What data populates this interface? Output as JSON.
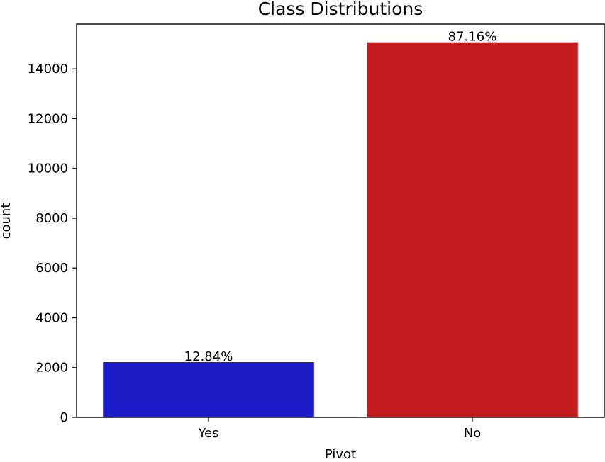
{
  "chart_data": {
    "type": "bar",
    "title": "Class Distributions",
    "xlabel": "Pivot",
    "ylabel": "count",
    "categories": [
      "Yes",
      "No"
    ],
    "values": [
      2220,
      15070
    ],
    "bar_labels": [
      "12.84%",
      "87.16%"
    ],
    "colors": [
      "#1c1cc8",
      "#c21c1c"
    ],
    "ylim": [
      0,
      15800
    ],
    "yticks": [
      0,
      2000,
      4000,
      6000,
      8000,
      10000,
      12000,
      14000
    ],
    "grid": false,
    "legend": "none"
  }
}
